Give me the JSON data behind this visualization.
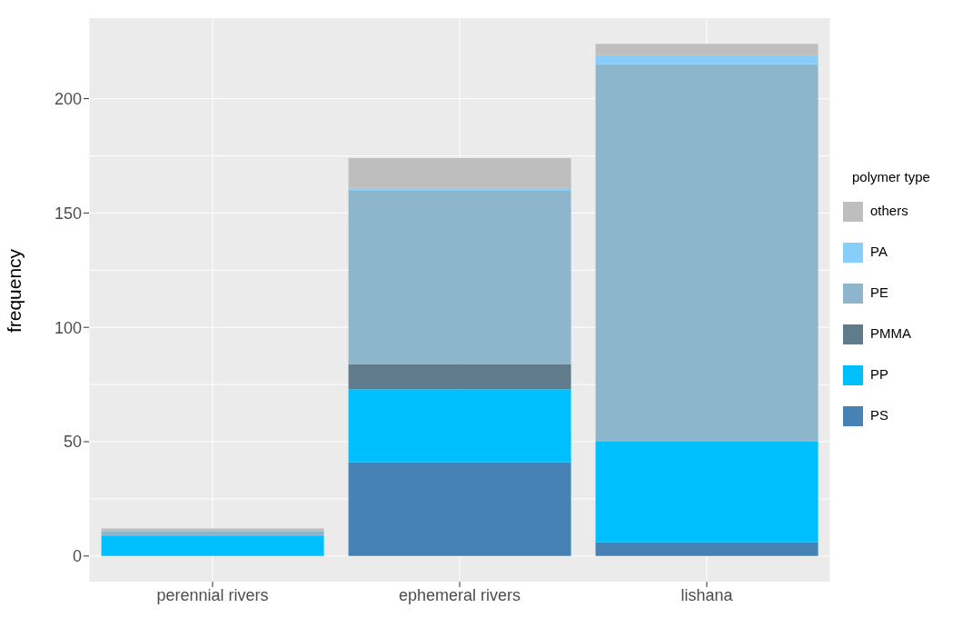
{
  "chart_data": {
    "type": "bar",
    "ylabel": "frequency",
    "legend_title": "polymer type",
    "categories": [
      "perennial rivers",
      "ephemeral rivers",
      "lishana"
    ],
    "stacked": true,
    "series": [
      {
        "name": "PS",
        "color": "#4682b4",
        "values": [
          0,
          41,
          6
        ]
      },
      {
        "name": "PP",
        "color": "#00bfff",
        "values": [
          9,
          32,
          44
        ]
      },
      {
        "name": "PMMA",
        "color": "#607b8b",
        "values": [
          0,
          11,
          0
        ]
      },
      {
        "name": "PE",
        "color": "#8db6cd",
        "values": [
          2,
          76,
          165
        ]
      },
      {
        "name": "PA",
        "color": "#87cefa",
        "values": [
          0,
          1,
          4
        ]
      },
      {
        "name": "others",
        "color": "#bebebe",
        "values": [
          1,
          13,
          5
        ]
      }
    ],
    "ylim": [
      -11.2,
      235.2
    ],
    "yticks": [
      0,
      50,
      100,
      150,
      200
    ],
    "grid": true,
    "legend": "right"
  }
}
